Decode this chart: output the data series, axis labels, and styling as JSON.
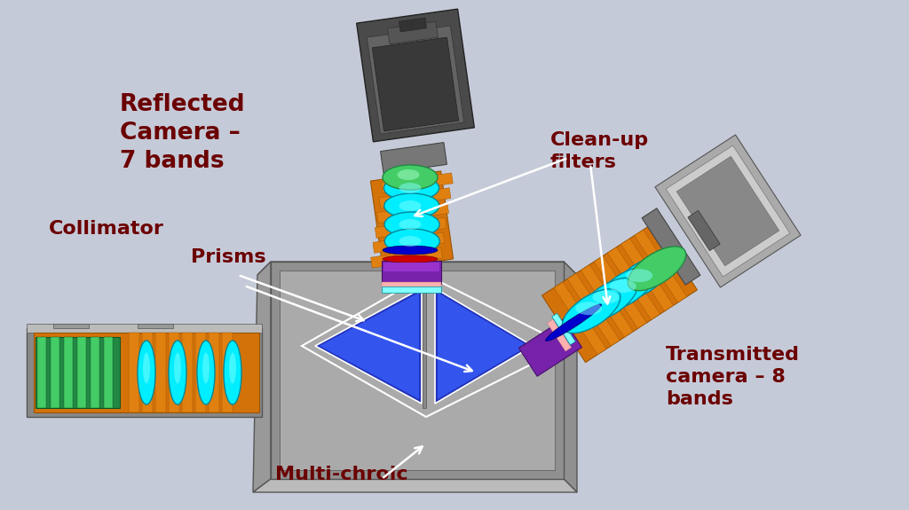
{
  "background_color": "#c5cad8",
  "labels": {
    "reflected_camera": "Reflected\nCamera –\n7 bands",
    "clean_up_filters": "Clean-up\nfilters",
    "prisms": "Prisms",
    "collimator": "Collimator",
    "multi_chroic": "Multi-chroic",
    "transmitted_camera": "Transmitted\ncamera – 8\nbands"
  },
  "label_color": "#6b0000",
  "font_size_large": 19,
  "font_size_medium": 16,
  "colors": {
    "orange": "#D4720A",
    "orange_dark": "#995500",
    "cyan": "#00EEFF",
    "cyan_dark": "#008899",
    "green": "#228844",
    "green_bright": "#44CC66",
    "purple": "#7722AA",
    "purple_dark": "#441166",
    "blue_prism": "#2233BB",
    "blue_prism_light": "#3355EE",
    "gray_body": "#909090",
    "gray_body_dark": "#666666",
    "gray_light": "#BBBBBB",
    "gray_mid": "#999999",
    "gray_dark": "#555555",
    "gray_camera": "#555555",
    "gray_camera_dark": "#333333",
    "gray_cam_light": "#888888",
    "white": "#ffffff",
    "pink": "#FFB0B0",
    "red_ring": "#CC2222"
  }
}
